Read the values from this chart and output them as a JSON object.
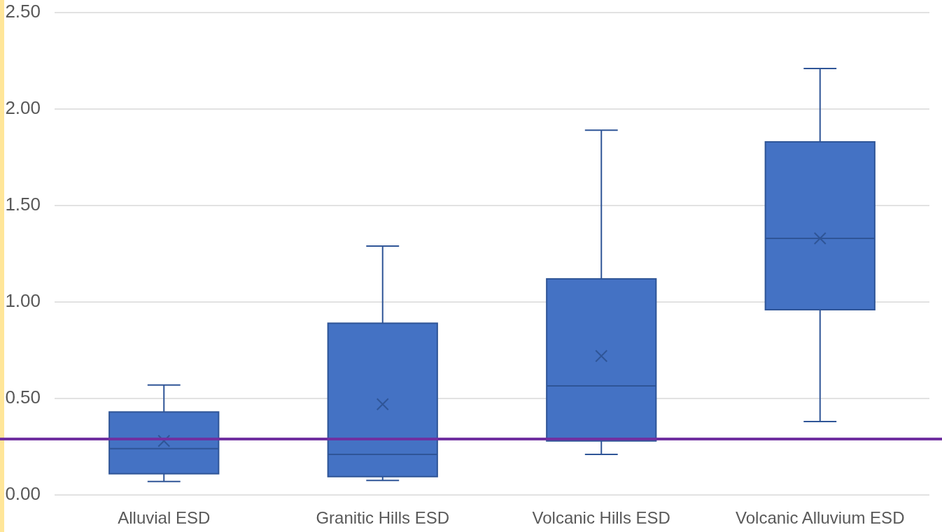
{
  "chart_data": {
    "type": "box",
    "categories": [
      "Alluvial ESD",
      "Granitic Hills ESD",
      "Volcanic Hills ESD",
      "Volcanic Alluvium ESD"
    ],
    "color": "#4472c4",
    "boxes": [
      {
        "low": 0.07,
        "q1": 0.11,
        "median": 0.24,
        "q3": 0.43,
        "high": 0.57,
        "mean": 0.28
      },
      {
        "low": 0.075,
        "q1": 0.095,
        "median": 0.21,
        "q3": 0.89,
        "high": 1.29,
        "mean": 0.47
      },
      {
        "low": 0.21,
        "q1": 0.28,
        "median": 0.565,
        "q3": 1.12,
        "high": 1.89,
        "mean": 0.72
      },
      {
        "low": 0.38,
        "q1": 0.96,
        "median": 1.33,
        "q3": 1.83,
        "high": 2.21,
        "mean": 1.33
      }
    ],
    "ylim": [
      0,
      2.5
    ],
    "yticks": [
      {
        "value": 0,
        "label": "0.00"
      },
      {
        "value": 0.5,
        "label": "0.50"
      },
      {
        "value": 1,
        "label": "1.00"
      },
      {
        "value": 1.5,
        "label": "1.50"
      },
      {
        "value": 2,
        "label": "2.00"
      },
      {
        "value": 2.5,
        "label": "2.50"
      }
    ],
    "grid": "y",
    "ref_lines": [
      {
        "axis": "y",
        "value": 0.29,
        "color": "#7030a0"
      }
    ]
  }
}
